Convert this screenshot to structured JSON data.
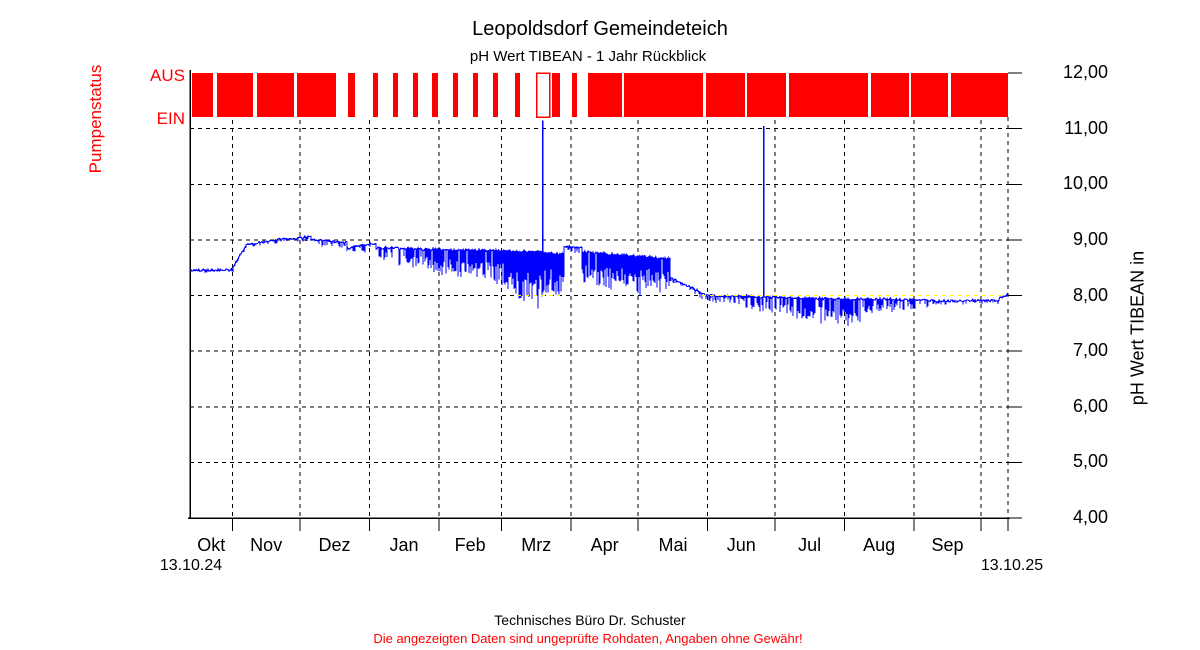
{
  "header": {
    "title": "Leopoldsdorf Gemeindeteich",
    "subtitle": "pH Wert TIBEAN - 1 Jahr Rückblick"
  },
  "pump": {
    "axis_label": "Pumpenstatus",
    "off_label": "AUS",
    "on_label": "EIN",
    "color": "#ff0000"
  },
  "axis_y": {
    "label": "pH Wert TIBEAN in",
    "ticks": [
      {
        "label": "12,00",
        "value": 12
      },
      {
        "label": "11,00",
        "value": 11
      },
      {
        "label": "10,00",
        "value": 10
      },
      {
        "label": "9,00",
        "value": 9
      },
      {
        "label": "8,00",
        "value": 8
      },
      {
        "label": "7,00",
        "value": 7
      },
      {
        "label": "6,00",
        "value": 6
      },
      {
        "label": "5,00",
        "value": 5
      },
      {
        "label": "4,00",
        "value": 4
      }
    ]
  },
  "axis_x": {
    "start_date": "13.10.24",
    "end_date": "13.10.25",
    "months": [
      {
        "label": "Okt",
        "center_day": 9.5
      },
      {
        "label": "Nov",
        "center_day": 34
      },
      {
        "label": "Dez",
        "center_day": 64.5
      },
      {
        "label": "Jan",
        "center_day": 95.5
      },
      {
        "label": "Feb",
        "center_day": 125
      },
      {
        "label": "Mrz",
        "center_day": 154.5
      },
      {
        "label": "Apr",
        "center_day": 185
      },
      {
        "label": "Mai",
        "center_day": 215.5
      },
      {
        "label": "Jun",
        "center_day": 246
      },
      {
        "label": "Jul",
        "center_day": 276.5
      },
      {
        "label": "Aug",
        "center_day": 307.5
      },
      {
        "label": "Sep",
        "center_day": 338
      }
    ]
  },
  "footer": {
    "company": "Technisches Büro Dr. Schuster",
    "disclaimer": "Die angezeigten Daten sind ungeprüfte Rohdaten, Angaben ohne Gewähr!",
    "disclaimer_color": "#ff0000"
  },
  "chart_data": {
    "type": "line",
    "title": "Leopoldsdorf Gemeindeteich",
    "subtitle": "pH Wert TIBEAN - 1 Jahr Rückblick",
    "ylabel": "pH Wert TIBEAN in",
    "ylim": [
      4,
      12
    ],
    "y_tick_step": 1,
    "x_range": [
      "13.10.24",
      "13.10.25"
    ],
    "x_total_days": 365,
    "grid": "dashed",
    "series_color": "#0000ff",
    "grid_color": "#000000",
    "xor_overlap_color": "#ffff00",
    "month_boundaries_days": [
      19,
      49,
      80,
      111,
      139,
      170,
      200,
      231,
      261,
      292,
      323,
      353
    ],
    "pump_band": {
      "label": "Pumpenstatus",
      "states": [
        "AUS",
        "EIN"
      ],
      "color": "#ff0000",
      "aus_segments_days": [
        [
          0.9,
          10.3
        ],
        [
          12.0,
          28.1
        ],
        [
          29.9,
          46.4
        ],
        [
          47.7,
          65.1
        ],
        [
          70.5,
          73.6
        ],
        [
          81.7,
          83.9
        ],
        [
          90.6,
          92.8
        ],
        [
          99.5,
          101.7
        ],
        [
          108.0,
          110.7
        ],
        [
          117.3,
          119.6
        ],
        [
          126.3,
          128.5
        ],
        [
          135.2,
          137.4
        ],
        [
          145.0,
          147.2
        ],
        [
          161.5,
          165.1
        ],
        [
          170.5,
          172.7
        ],
        [
          177.6,
          192.8
        ],
        [
          193.7,
          228.9
        ],
        [
          230.2,
          247.6
        ],
        [
          248.5,
          265.9
        ],
        [
          267.3,
          302.5
        ],
        [
          303.9,
          320.8
        ],
        [
          321.7,
          338.2
        ],
        [
          339.6,
          365
        ]
      ],
      "outline_segments_days": [
        [
          154.8,
          160.6
        ]
      ]
    },
    "ph_envelope_days": [
      [
        0,
        19,
        8.45,
        8.46,
        0.04,
        0.04
      ],
      [
        19,
        25,
        8.5,
        8.9,
        0.04,
        0.04
      ],
      [
        25,
        39,
        8.92,
        8.99,
        0.05,
        0.06
      ],
      [
        39,
        54,
        9.01,
        9.05,
        0.06,
        0.07
      ],
      [
        54,
        70,
        9.0,
        8.95,
        0.08,
        0.12
      ],
      [
        70,
        72.5,
        8.84,
        8.85,
        0.05,
        0.05
      ],
      [
        72.5,
        83,
        8.88,
        8.94,
        0.1,
        0.15
      ],
      [
        83,
        112,
        8.86,
        8.82,
        0.22,
        0.42
      ],
      [
        112,
        141,
        8.82,
        8.8,
        0.45,
        0.62
      ],
      [
        141,
        157,
        8.8,
        8.78,
        0.72,
        1.15
      ],
      [
        157,
        167,
        8.76,
        8.74,
        0.78,
        0.7
      ],
      [
        167,
        175,
        8.88,
        8.85,
        0.08,
        0.1
      ],
      [
        175,
        201,
        8.78,
        8.7,
        0.55,
        0.75
      ],
      [
        201,
        214,
        8.7,
        8.66,
        0.55,
        0.65
      ],
      [
        214,
        230,
        8.32,
        8.02,
        0.06,
        0.1
      ],
      [
        230,
        248,
        8.0,
        7.98,
        0.1,
        0.16
      ],
      [
        248,
        268,
        7.98,
        7.96,
        0.22,
        0.32
      ],
      [
        268,
        299,
        7.95,
        7.93,
        0.38,
        0.52
      ],
      [
        299,
        332,
        7.94,
        7.91,
        0.28,
        0.14
      ],
      [
        332,
        361,
        7.9,
        7.91,
        0.06,
        0.06
      ],
      [
        361,
        365,
        7.95,
        8.02,
        0.03,
        0.02
      ]
    ],
    "up_spikes": [
      {
        "day": 157.5,
        "from_ph": 8.05,
        "to_ph": 11.15
      },
      {
        "day": 256,
        "from_ph": 7.97,
        "to_ph": 11.05
      }
    ],
    "xor_overlay_segments_days": [
      [
        146,
        165
      ],
      [
        228.5,
        363
      ]
    ],
    "xor_overlay_ph": 8.0
  }
}
